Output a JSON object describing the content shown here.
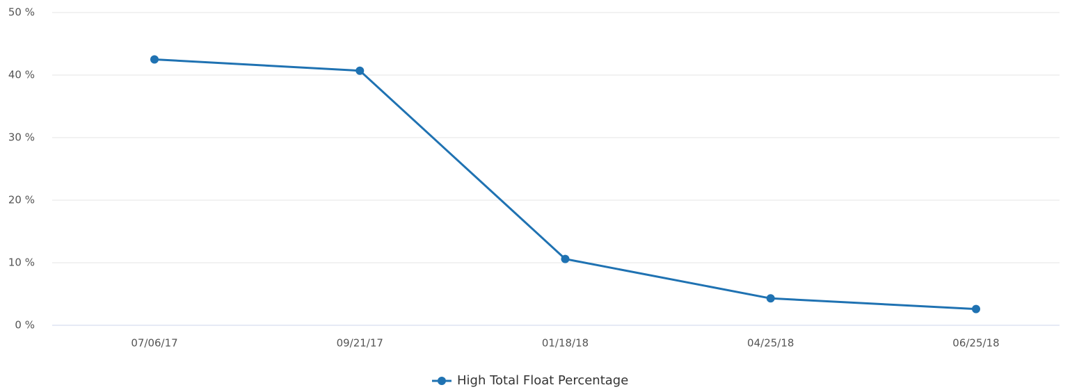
{
  "chart_data": {
    "type": "line",
    "categories": [
      "07/06/17",
      "09/21/17",
      "01/18/18",
      "04/25/18",
      "06/25/18"
    ],
    "series": [
      {
        "name": "High Total Float Percentage",
        "color": "#1f72b2",
        "values": [
          42.5,
          40.7,
          10.6,
          4.3,
          2.6
        ]
      }
    ],
    "ylim": [
      0,
      50
    ],
    "yticks": [
      {
        "value": 0,
        "label": "0 %"
      },
      {
        "value": 10,
        "label": "10 %"
      },
      {
        "value": 20,
        "label": "20 %"
      },
      {
        "value": 30,
        "label": "30 %"
      },
      {
        "value": 40,
        "label": "40 %"
      },
      {
        "value": 50,
        "label": "50 %"
      }
    ],
    "grid": true,
    "legend": "bottom"
  }
}
